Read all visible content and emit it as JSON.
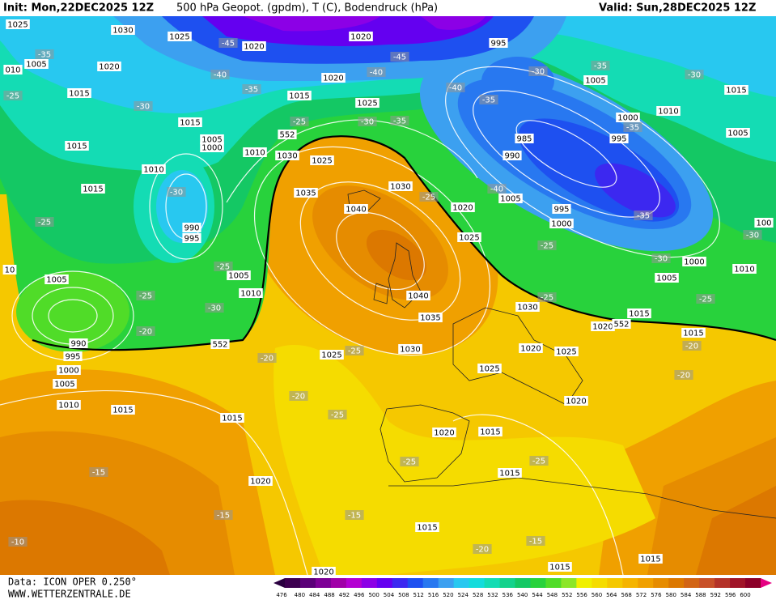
{
  "header": {
    "init": "Init: Mon,22DEC2025 12Z",
    "title": "500 hPa Geopot. (gpdm), T (C), Bodendruck (hPa)",
    "valid": "Valid: Sun,28DEC2025 12Z"
  },
  "footer": {
    "source": "Data: ICON OPER 0.250°",
    "site": "WWW.WETTERZENTRALE.DE"
  },
  "color_scale": {
    "ticks": [
      476,
      480,
      484,
      488,
      492,
      496,
      500,
      504,
      508,
      512,
      516,
      520,
      524,
      528,
      532,
      536,
      540,
      544,
      548,
      552,
      556,
      560,
      564,
      568,
      572,
      576,
      580,
      584,
      588,
      592,
      596,
      600
    ],
    "colors": [
      "#3d0050",
      "#5a0078",
      "#7d0096",
      "#a000a8",
      "#b400d2",
      "#8c00e6",
      "#6400f0",
      "#3c28f0",
      "#1e50f0",
      "#2878f0",
      "#3ca0f0",
      "#28c8f0",
      "#14dcdc",
      "#14dcb4",
      "#14d28c",
      "#14c864",
      "#28d23c",
      "#50dc28",
      "#8ce628",
      "#f0f000",
      "#f5dc00",
      "#f5c800",
      "#f5b400",
      "#f0a000",
      "#e68c00",
      "#dc7800",
      "#d26414",
      "#c85028",
      "#b43228",
      "#a01428",
      "#8c0028"
    ],
    "under_color": "#2a0040",
    "over_color": "#e60082"
  },
  "map_labels": [
    "1025",
    "1030",
    "1025",
    "-45",
    "1020",
    "1020",
    "995",
    "-35",
    "1005",
    "1020",
    "-40",
    "1020",
    "-40",
    "-45",
    "-30",
    "-35",
    "1005",
    "-30",
    "1015",
    "1015",
    "-35",
    "1015",
    "1025",
    "-40",
    "-30",
    "-35",
    "1010",
    "1000",
    "1015",
    "-25",
    "-30",
    "-35",
    "-35",
    "1005",
    "1005",
    "552",
    "985",
    "995",
    "1015",
    "1000",
    "1010",
    "1030",
    "1025",
    "990",
    "1010",
    "1030",
    "1015",
    "-30",
    "1035",
    "-25",
    "-40",
    "1005",
    "1040",
    "1020",
    "995",
    "-25",
    "990",
    "995",
    "1025",
    "1000",
    "-35",
    "1005",
    "-25",
    "1010",
    "1005",
    "-25",
    "-30",
    "1040",
    "-20",
    "990",
    "552",
    "995",
    "1000",
    "1005",
    "1035",
    "1030",
    "1025",
    "-25",
    "1030",
    "1015",
    "1020",
    "1015",
    "1020",
    "1025",
    "1025",
    "-20",
    "-20",
    "1010",
    "1015",
    "-20",
    "1015",
    "-25",
    "1020",
    "1020",
    "1015",
    "-25",
    "-15",
    "-25",
    "1015",
    "1020",
    "-15",
    "-15",
    "1015",
    "-10",
    "-15",
    "-20",
    "1015",
    "1015",
    "1020",
    "1000",
    "1005",
    "-30",
    "1010",
    "-25",
    "-20",
    "100",
    "-30",
    "-25",
    "-25",
    "552",
    "010",
    "-25",
    "10"
  ]
}
